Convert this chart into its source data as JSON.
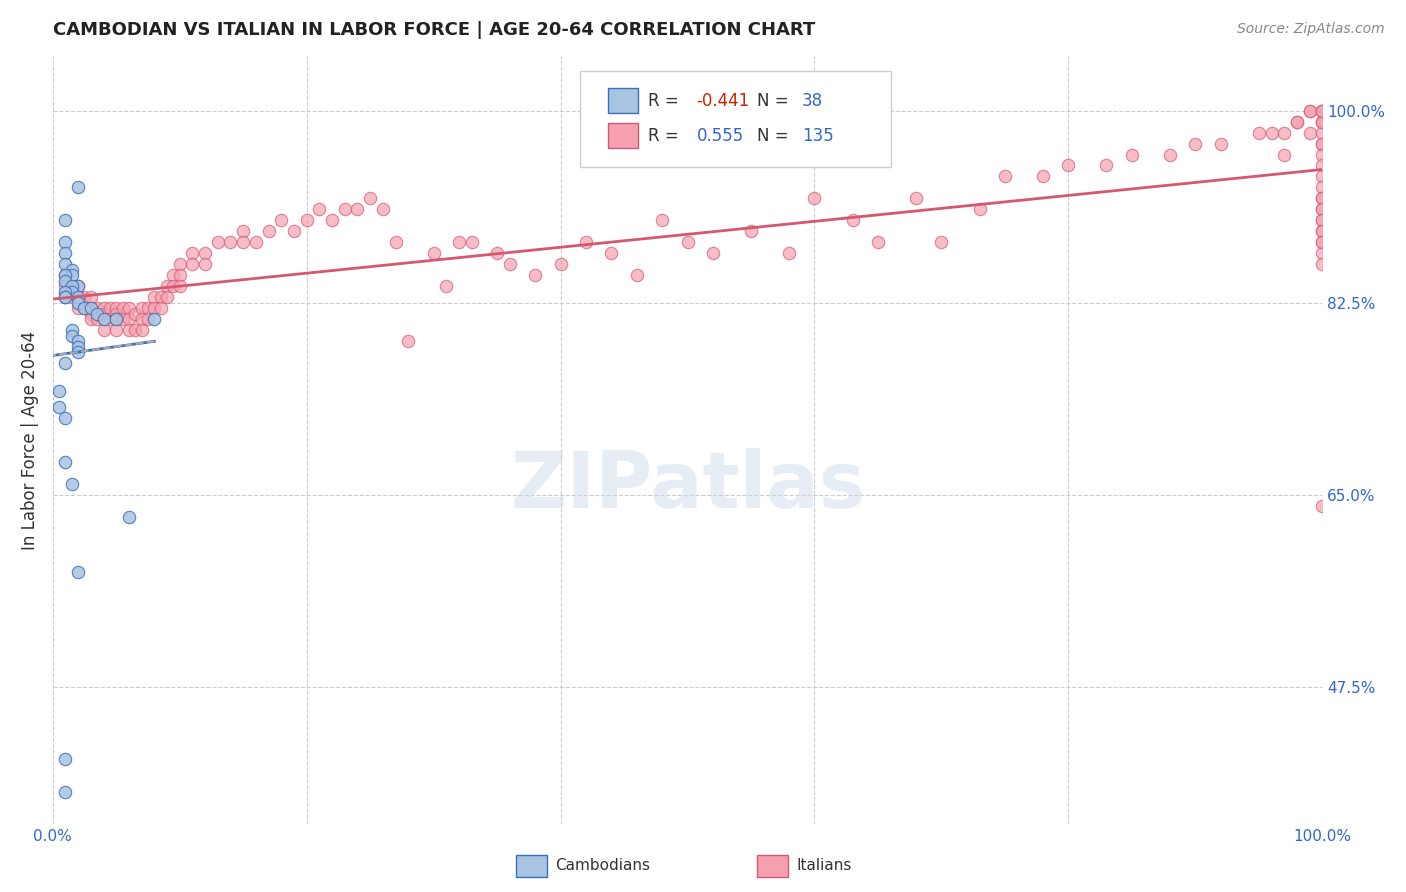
{
  "title": "CAMBODIAN VS ITALIAN IN LABOR FORCE | AGE 20-64 CORRELATION CHART",
  "source": "Source: ZipAtlas.com",
  "ylabel": "In Labor Force | Age 20-64",
  "xlim": [
    0.0,
    1.0
  ],
  "ylim": [
    0.35,
    1.05
  ],
  "yticks": [
    0.475,
    0.65,
    0.825,
    1.0
  ],
  "ytick_labels": [
    "47.5%",
    "65.0%",
    "82.5%",
    "100.0%"
  ],
  "background_color": "#ffffff",
  "grid_color": "#cccccc",
  "cambodian_color": "#a8c4e0",
  "italian_color": "#f4a0b0",
  "cambodian_line_color": "#3a6fbf",
  "italian_line_color": "#d45870",
  "R_cambodian": -0.441,
  "N_cambodian": 38,
  "R_italian": 0.555,
  "N_italian": 135,
  "watermark": "ZIPatlas",
  "cambodian_scatter_x": [
    0.02,
    0.01,
    0.01,
    0.01,
    0.01,
    0.015,
    0.015,
    0.01,
    0.01,
    0.02,
    0.015,
    0.015,
    0.01,
    0.01,
    0.01,
    0.02,
    0.02,
    0.025,
    0.03,
    0.035,
    0.04,
    0.05,
    0.08,
    0.015,
    0.015,
    0.02,
    0.02,
    0.02,
    0.01,
    0.005,
    0.005,
    0.01,
    0.01,
    0.015,
    0.06,
    0.02,
    0.01,
    0.01
  ],
  "cambodian_scatter_y": [
    0.93,
    0.9,
    0.88,
    0.87,
    0.86,
    0.855,
    0.85,
    0.85,
    0.845,
    0.84,
    0.84,
    0.835,
    0.835,
    0.83,
    0.83,
    0.83,
    0.825,
    0.82,
    0.82,
    0.815,
    0.81,
    0.81,
    0.81,
    0.8,
    0.795,
    0.79,
    0.785,
    0.78,
    0.77,
    0.745,
    0.73,
    0.72,
    0.68,
    0.66,
    0.63,
    0.58,
    0.41,
    0.38
  ],
  "italian_scatter_x": [
    0.01,
    0.01,
    0.015,
    0.015,
    0.02,
    0.02,
    0.02,
    0.025,
    0.025,
    0.03,
    0.03,
    0.03,
    0.03,
    0.035,
    0.035,
    0.04,
    0.04,
    0.04,
    0.04,
    0.045,
    0.045,
    0.05,
    0.05,
    0.05,
    0.05,
    0.055,
    0.055,
    0.06,
    0.06,
    0.06,
    0.065,
    0.065,
    0.07,
    0.07,
    0.07,
    0.075,
    0.075,
    0.08,
    0.08,
    0.085,
    0.085,
    0.09,
    0.09,
    0.095,
    0.095,
    0.1,
    0.1,
    0.1,
    0.11,
    0.11,
    0.12,
    0.12,
    0.13,
    0.14,
    0.15,
    0.15,
    0.16,
    0.17,
    0.18,
    0.19,
    0.2,
    0.21,
    0.22,
    0.23,
    0.24,
    0.25,
    0.26,
    0.27,
    0.28,
    0.3,
    0.31,
    0.32,
    0.33,
    0.35,
    0.36,
    0.38,
    0.4,
    0.42,
    0.44,
    0.46,
    0.48,
    0.5,
    0.52,
    0.55,
    0.58,
    0.6,
    0.63,
    0.65,
    0.68,
    0.7,
    0.73,
    0.75,
    0.78,
    0.8,
    0.83,
    0.85,
    0.88,
    0.9,
    0.92,
    0.95,
    0.96,
    0.97,
    0.97,
    0.98,
    0.98,
    0.99,
    0.99,
    0.99,
    1.0,
    1.0,
    1.0,
    1.0,
    1.0,
    1.0,
    1.0,
    1.0,
    1.0,
    1.0,
    1.0,
    1.0,
    1.0,
    1.0,
    1.0,
    1.0,
    1.0,
    1.0,
    1.0,
    1.0,
    1.0,
    1.0,
    1.0,
    1.0,
    1.0,
    1.0,
    1.0
  ],
  "italian_scatter_y": [
    0.85,
    0.84,
    0.84,
    0.83,
    0.84,
    0.83,
    0.82,
    0.83,
    0.82,
    0.83,
    0.82,
    0.815,
    0.81,
    0.82,
    0.81,
    0.82,
    0.815,
    0.81,
    0.8,
    0.82,
    0.81,
    0.82,
    0.815,
    0.81,
    0.8,
    0.82,
    0.81,
    0.82,
    0.81,
    0.8,
    0.815,
    0.8,
    0.82,
    0.81,
    0.8,
    0.82,
    0.81,
    0.83,
    0.82,
    0.83,
    0.82,
    0.84,
    0.83,
    0.85,
    0.84,
    0.86,
    0.85,
    0.84,
    0.87,
    0.86,
    0.87,
    0.86,
    0.88,
    0.88,
    0.89,
    0.88,
    0.88,
    0.89,
    0.9,
    0.89,
    0.9,
    0.91,
    0.9,
    0.91,
    0.91,
    0.92,
    0.91,
    0.88,
    0.79,
    0.87,
    0.84,
    0.88,
    0.88,
    0.87,
    0.86,
    0.85,
    0.86,
    0.88,
    0.87,
    0.85,
    0.9,
    0.88,
    0.87,
    0.89,
    0.87,
    0.92,
    0.9,
    0.88,
    0.92,
    0.88,
    0.91,
    0.94,
    0.94,
    0.95,
    0.95,
    0.96,
    0.96,
    0.97,
    0.97,
    0.98,
    0.98,
    0.98,
    0.96,
    0.99,
    0.99,
    1.0,
    1.0,
    0.98,
    0.99,
    1.0,
    0.97,
    0.99,
    1.0,
    0.98,
    0.99,
    1.0,
    0.97,
    0.96,
    0.95,
    0.94,
    0.93,
    0.92,
    0.91,
    0.9,
    0.89,
    0.64,
    0.92,
    0.91,
    0.88,
    0.87,
    0.86,
    0.9,
    0.89,
    0.88
  ]
}
